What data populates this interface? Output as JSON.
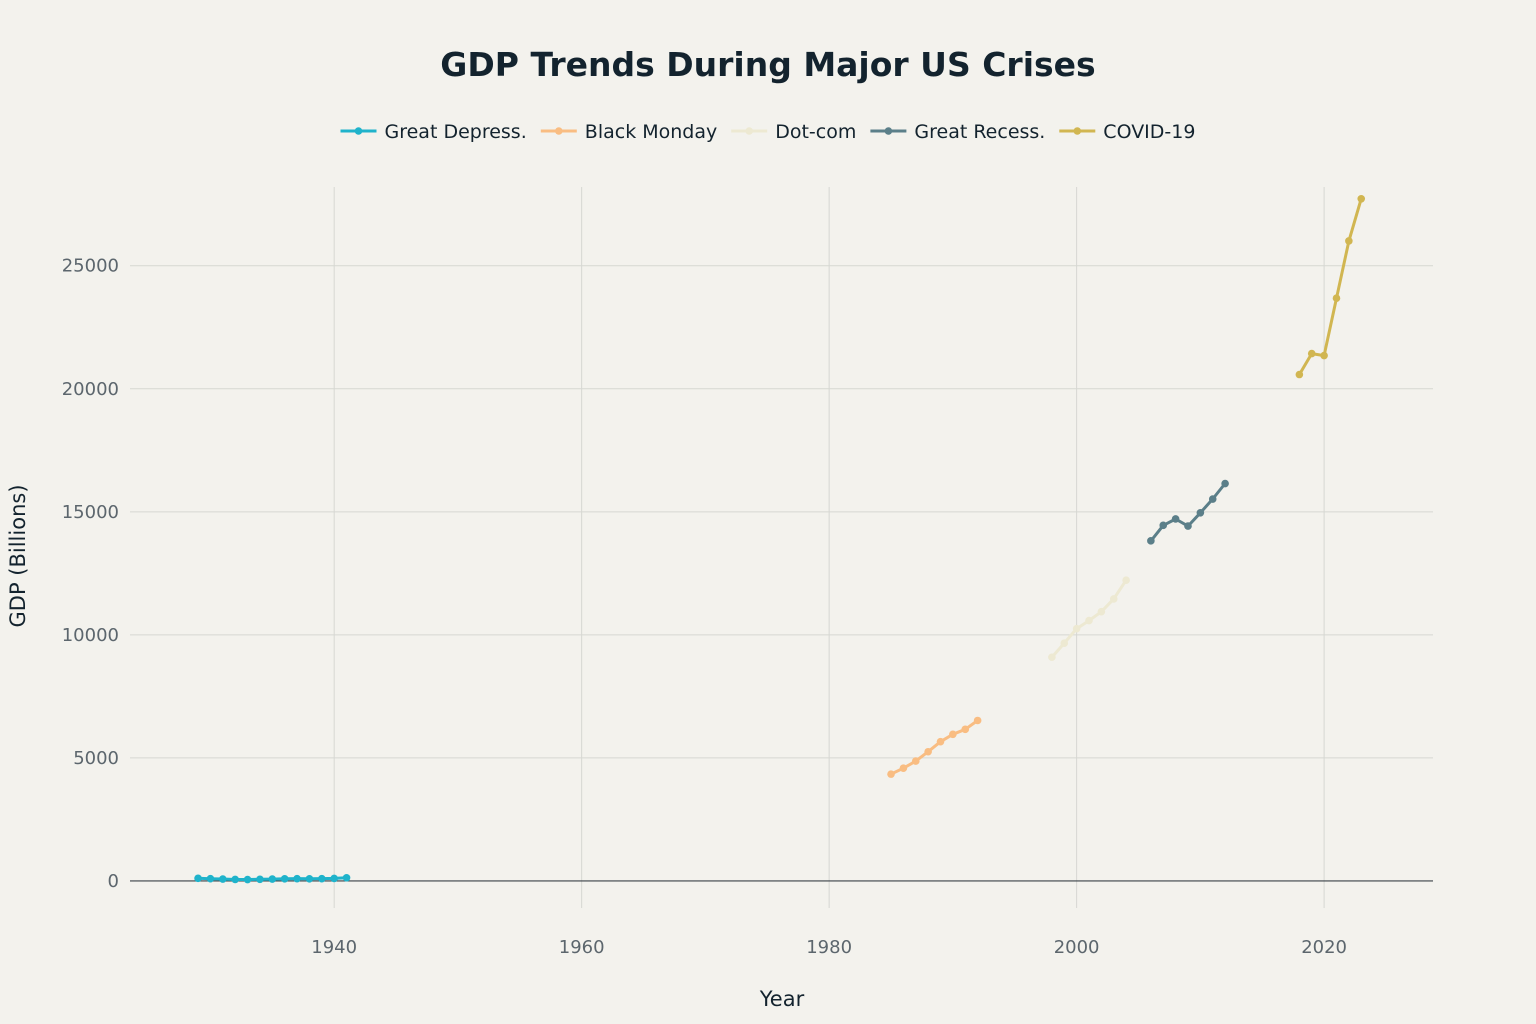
{
  "chart_data": {
    "type": "line",
    "title": "GDP Trends During Major US Crises",
    "xlabel": "Year",
    "ylabel": "GDP (Billions)",
    "xlim": [
      1923.5,
      2028.8
    ],
    "ylim": [
      -1100,
      28200
    ],
    "x_ticks": [
      1940,
      1960,
      1980,
      2000,
      2020
    ],
    "y_ticks": [
      0,
      5000,
      10000,
      15000,
      20000,
      25000
    ],
    "grid": true,
    "legend_position": "top-center",
    "series": [
      {
        "name": "Great Depress.",
        "color": "#1fb3cb",
        "x": [
          1929,
          1930,
          1931,
          1932,
          1933,
          1934,
          1935,
          1936,
          1937,
          1938,
          1939,
          1940,
          1941
        ],
        "values": [
          105,
          92,
          77,
          60,
          57,
          66,
          74,
          85,
          93,
          87,
          93,
          103,
          129
        ]
      },
      {
        "name": "Black Monday",
        "color": "#f9bd82",
        "x": [
          1985,
          1986,
          1987,
          1988,
          1989,
          1990,
          1991,
          1992
        ],
        "values": [
          4340,
          4580,
          4870,
          5250,
          5660,
          5960,
          6160,
          6520
        ]
      },
      {
        "name": "Dot-com",
        "color": "#ede9d2",
        "x": [
          1998,
          1999,
          2000,
          2001,
          2002,
          2003,
          2004
        ],
        "values": [
          9090,
          9660,
          10250,
          10580,
          10940,
          11460,
          12220
        ]
      },
      {
        "name": "Great Recess.",
        "color": "#5b7f89",
        "x": [
          2006,
          2007,
          2008,
          2009,
          2010,
          2011,
          2012
        ],
        "values": [
          13820,
          14450,
          14710,
          14420,
          14960,
          15520,
          16150
        ]
      },
      {
        "name": "COVID-19",
        "color": "#d1b651",
        "x": [
          2018,
          2019,
          2020,
          2021,
          2022,
          2023
        ],
        "values": [
          20580,
          21430,
          21350,
          23680,
          26010,
          27720
        ]
      }
    ]
  }
}
